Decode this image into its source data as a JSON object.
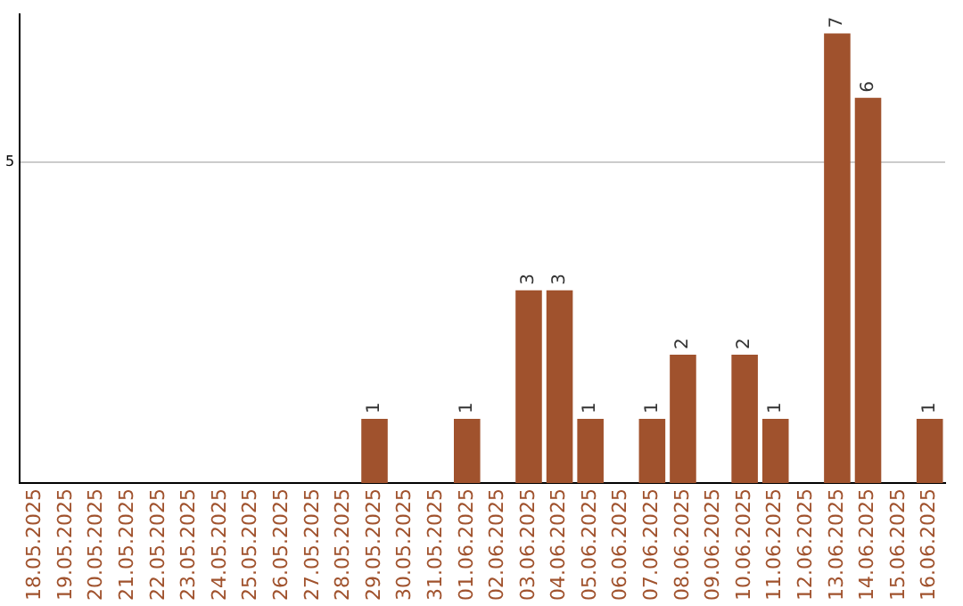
{
  "chart_data": {
    "type": "bar",
    "categories": [
      "18.05.2025",
      "19.05.2025",
      "20.05.2025",
      "21.05.2025",
      "22.05.2025",
      "23.05.2025",
      "24.05.2025",
      "25.05.2025",
      "26.05.2025",
      "27.05.2025",
      "28.05.2025",
      "29.05.2025",
      "30.05.2025",
      "31.05.2025",
      "01.06.2025",
      "02.06.2025",
      "03.06.2025",
      "04.06.2025",
      "05.06.2025",
      "06.06.2025",
      "07.06.2025",
      "08.06.2025",
      "09.06.2025",
      "10.06.2025",
      "11.06.2025",
      "12.06.2025",
      "13.06.2025",
      "14.06.2025",
      "15.06.2025",
      "16.06.2025"
    ],
    "values": [
      0,
      0,
      0,
      0,
      0,
      0,
      0,
      0,
      0,
      0,
      0,
      1,
      0,
      0,
      1,
      0,
      3,
      3,
      1,
      0,
      1,
      2,
      0,
      2,
      1,
      0,
      7,
      6,
      0,
      1
    ],
    "value_labels": [
      null,
      null,
      null,
      null,
      null,
      null,
      null,
      null,
      null,
      null,
      null,
      "1",
      null,
      null,
      "1",
      null,
      "3",
      "3",
      "1",
      null,
      "1",
      "2",
      null,
      "2",
      "1",
      null,
      "7",
      "6",
      null,
      "1"
    ],
    "color": "#a0522d",
    "ylim": [
      0,
      7.3
    ],
    "yticks": [
      5
    ],
    "grid": "y",
    "legend": false
  }
}
